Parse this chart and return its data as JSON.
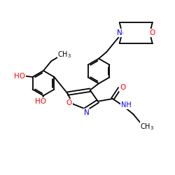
{
  "bg_color": "#ffffff",
  "atom_colors": {
    "N": "#0000ff",
    "O": "#ff0000",
    "C": "#000000"
  },
  "bond_lw": 1.3,
  "figsize": [
    2.5,
    2.5
  ],
  "dpi": 100,
  "xlim": [
    0,
    10
  ],
  "ylim": [
    0,
    10
  ]
}
